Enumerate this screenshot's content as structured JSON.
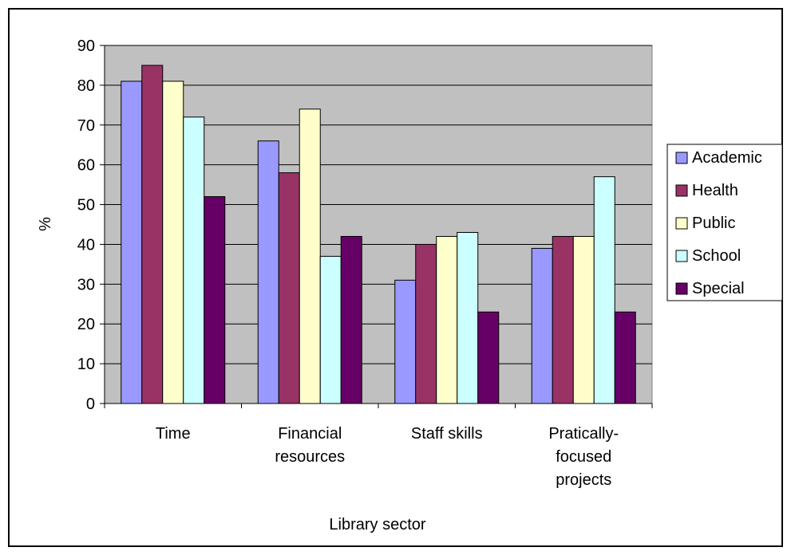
{
  "chart_data": {
    "type": "bar",
    "title": "",
    "xlabel": "Library sector",
    "ylabel": "%",
    "ylim": [
      0,
      90
    ],
    "yticks": [
      0,
      10,
      20,
      30,
      40,
      50,
      60,
      70,
      80,
      90
    ],
    "grid": true,
    "legend_position": "right",
    "categories": [
      [
        "Time"
      ],
      [
        "Financial",
        "resources"
      ],
      [
        "Staff skills"
      ],
      [
        "Pratically-",
        "focused",
        "projects"
      ]
    ],
    "series": [
      {
        "name": "Academic",
        "color": "#9999ff",
        "values": [
          81,
          66,
          31,
          39
        ]
      },
      {
        "name": "Health",
        "color": "#993366",
        "values": [
          85,
          58,
          40,
          42
        ]
      },
      {
        "name": "Public",
        "color": "#ffffcc",
        "values": [
          81,
          74,
          42,
          42
        ]
      },
      {
        "name": "School",
        "color": "#ccffff",
        "values": [
          72,
          37,
          43,
          57
        ]
      },
      {
        "name": "Special",
        "color": "#660066",
        "values": [
          52,
          42,
          23,
          23
        ]
      }
    ],
    "plot_background": "#c0c0c0"
  }
}
